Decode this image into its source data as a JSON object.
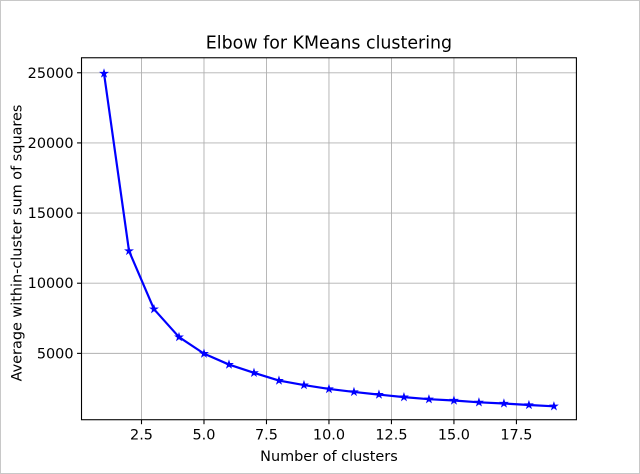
{
  "figure": {
    "background": "#ffffff",
    "border_color": "#c8c8c8"
  },
  "chart_data": {
    "type": "line",
    "title": "Elbow for KMeans clustering",
    "xlabel": "Number of clusters",
    "ylabel": "Average within-cluster sum of squares",
    "x": [
      1,
      2,
      3,
      4,
      5,
      6,
      7,
      8,
      9,
      10,
      11,
      12,
      13,
      14,
      15,
      16,
      17,
      18,
      19
    ],
    "y": [
      24950,
      12300,
      8150,
      6160,
      4980,
      4200,
      3610,
      3060,
      2740,
      2460,
      2250,
      2060,
      1880,
      1730,
      1640,
      1510,
      1430,
      1320,
      1230
    ],
    "xlim": [
      0.1,
      19.9
    ],
    "ylim": [
      270,
      26070
    ],
    "xticks": {
      "values": [
        2.5,
        5,
        7.5,
        10,
        12.5,
        15,
        17.5
      ],
      "labels": [
        "2.5",
        "5.0",
        "7.5",
        "10.0",
        "12.5",
        "15.0",
        "17.5"
      ]
    },
    "yticks": {
      "values": [
        5000,
        10000,
        15000,
        20000,
        25000
      ],
      "labels": [
        "5000",
        "10000",
        "15000",
        "20000",
        "25000"
      ]
    },
    "grid": true,
    "legend": "none",
    "marker": "star",
    "line_width": 2.2,
    "colors": {
      "line": "#0000ff",
      "marker": "#0000ff",
      "grid": "#b0b0b0",
      "spine": "#000000",
      "text": "#000000",
      "plot_background": "#ffffff"
    }
  }
}
